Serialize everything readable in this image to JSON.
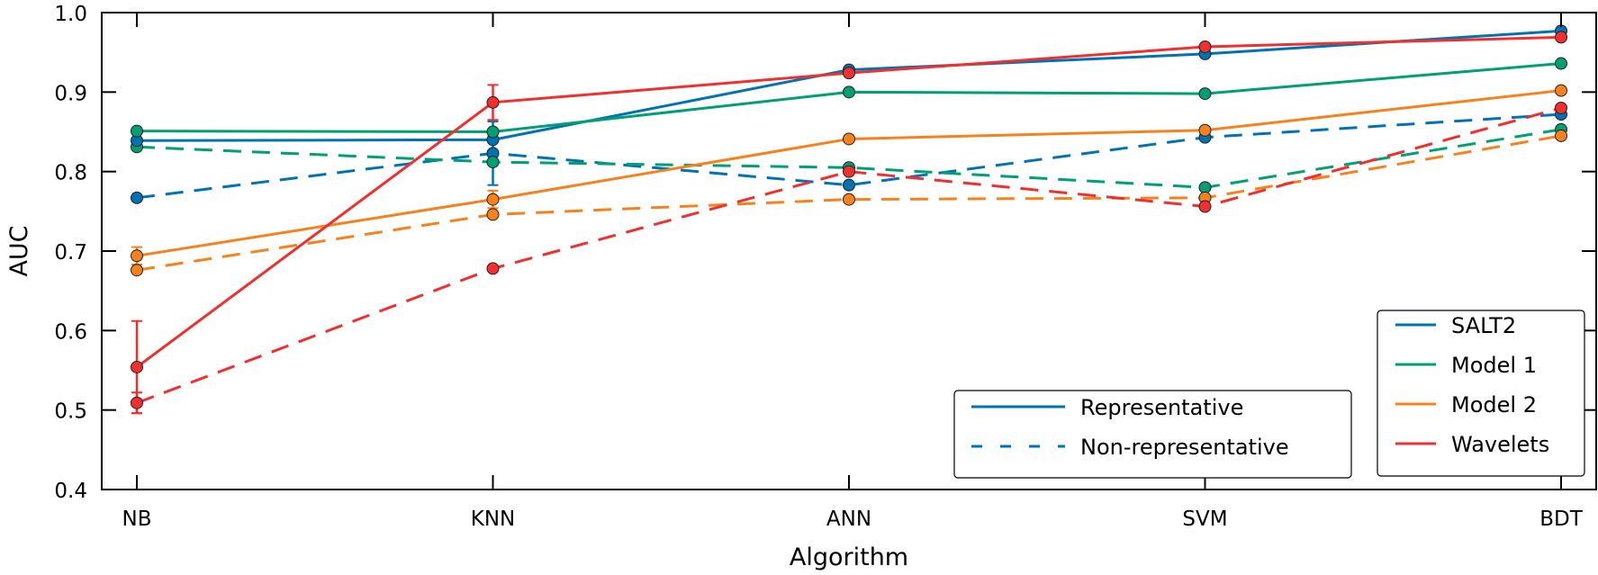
{
  "chart_data": {
    "type": "line",
    "title": "",
    "xlabel": "Algorithm",
    "ylabel": "AUC",
    "categories": [
      "NB",
      "KNN",
      "ANN",
      "SVM",
      "BDT"
    ],
    "ylim": [
      0.4,
      1.0
    ],
    "yticks": [
      "0.4",
      "0.5",
      "0.6",
      "0.7",
      "0.8",
      "0.9",
      "1.0"
    ],
    "grid": false,
    "colors": {
      "SALT2": "#0072B2",
      "Model 1": "#009E73",
      "Model 2": "#F5821F",
      "Wavelets": "#EE3030"
    },
    "series": [
      {
        "name": "SALT2",
        "style": "Representative",
        "values": [
          0.839,
          0.84,
          0.928,
          0.948,
          0.977
        ],
        "yerr": [
          0,
          0,
          0,
          0,
          0
        ]
      },
      {
        "name": "Model 1",
        "style": "Representative",
        "values": [
          0.851,
          0.85,
          0.9,
          0.898,
          0.936
        ],
        "yerr": [
          0,
          0,
          0,
          0,
          0
        ]
      },
      {
        "name": "Model 2",
        "style": "Representative",
        "values": [
          0.694,
          0.765,
          0.841,
          0.852,
          0.902
        ],
        "yerr": [
          0.011,
          0.011,
          0,
          0,
          0
        ]
      },
      {
        "name": "Wavelets",
        "style": "Representative",
        "values": [
          0.554,
          0.887,
          0.924,
          0.957,
          0.969
        ],
        "yerr": [
          0.058,
          0.022,
          0,
          0,
          0
        ]
      },
      {
        "name": "SALT2",
        "style": "Non-representative",
        "values": [
          0.767,
          0.823,
          0.783,
          0.843,
          0.872
        ],
        "yerr": [
          0,
          0.04,
          0,
          0,
          0
        ]
      },
      {
        "name": "Model 1",
        "style": "Non-representative",
        "values": [
          0.831,
          0.812,
          0.805,
          0.78,
          0.853
        ],
        "yerr": [
          0,
          0,
          0,
          0,
          0
        ]
      },
      {
        "name": "Model 2",
        "style": "Non-representative",
        "values": [
          0.676,
          0.746,
          0.765,
          0.767,
          0.845
        ],
        "yerr": [
          0,
          0,
          0,
          0,
          0
        ]
      },
      {
        "name": "Wavelets",
        "style": "Non-representative",
        "values": [
          0.509,
          0.678,
          0.8,
          0.756,
          0.88
        ],
        "yerr": [
          0.013,
          0,
          0,
          0,
          0
        ]
      }
    ],
    "legends": {
      "linestyle": {
        "placement": "lower-center-right",
        "entries": [
          "Representative",
          "Non-representative"
        ]
      },
      "models": {
        "placement": "lower-right",
        "entries": [
          "SALT2",
          "Model 1",
          "Model 2",
          "Wavelets"
        ]
      }
    }
  }
}
